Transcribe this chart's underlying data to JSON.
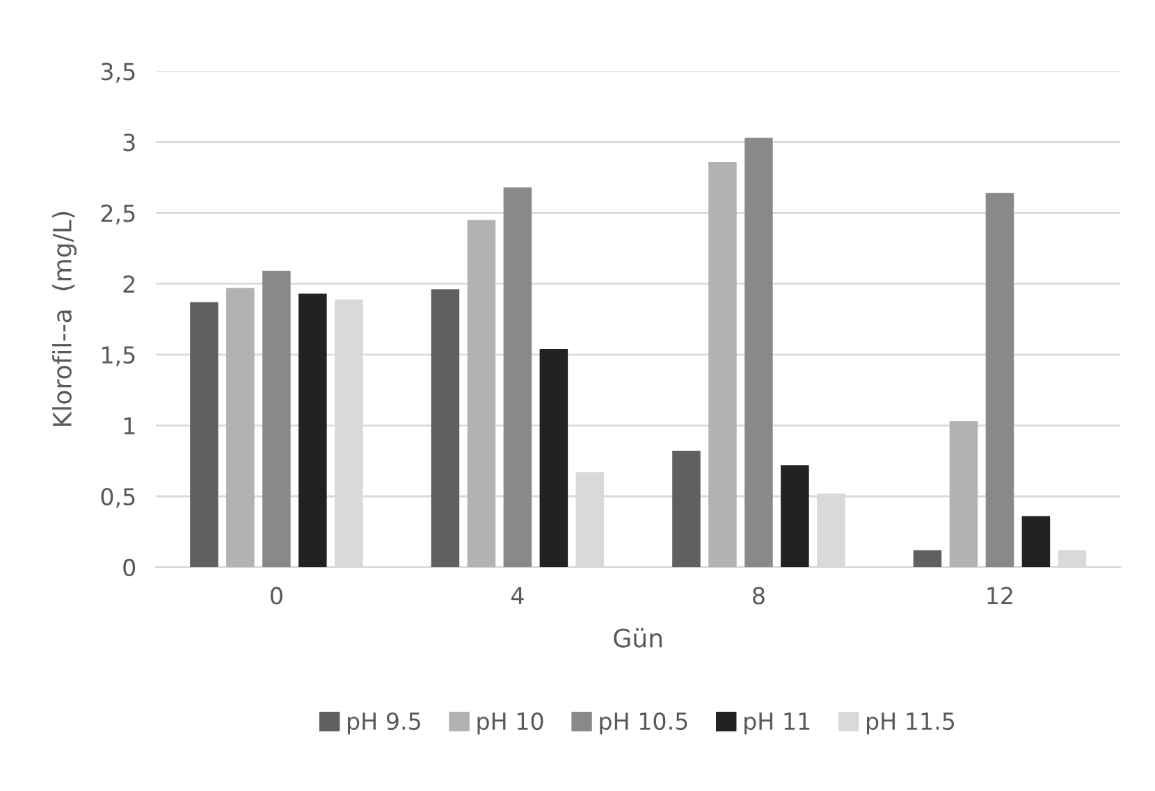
{
  "chart_data": {
    "type": "bar",
    "xlabel": "Gün",
    "ylabel": "Klorofil--a  (mg/L)",
    "categories": [
      "0",
      "4",
      "8",
      "12"
    ],
    "series": [
      {
        "name": "pH 9.5",
        "color": "#606060",
        "values": [
          1.87,
          1.96,
          0.82,
          0.12
        ]
      },
      {
        "name": "pH 10",
        "color": "#b2b2b2",
        "values": [
          1.97,
          2.45,
          2.86,
          1.03
        ]
      },
      {
        "name": "pH 10.5",
        "color": "#898989",
        "values": [
          2.09,
          2.68,
          3.03,
          2.64
        ]
      },
      {
        "name": "pH 11",
        "color": "#222222",
        "values": [
          1.93,
          1.54,
          0.72,
          0.36
        ]
      },
      {
        "name": "pH 11.5",
        "color": "#d9d9d9",
        "values": [
          1.89,
          0.67,
          0.52,
          0.12
        ]
      }
    ],
    "ylim": [
      0,
      3.5
    ],
    "yticks": [
      0,
      {
        "value": 0.5,
        "label": "0,5"
      },
      1,
      {
        "value": 1.5,
        "label": "1,5"
      },
      2,
      {
        "value": 2.5,
        "label": "2,5"
      },
      3,
      {
        "value": 3.5,
        "label": "3,5"
      }
    ],
    "grid": "y",
    "legend": "bottom"
  }
}
